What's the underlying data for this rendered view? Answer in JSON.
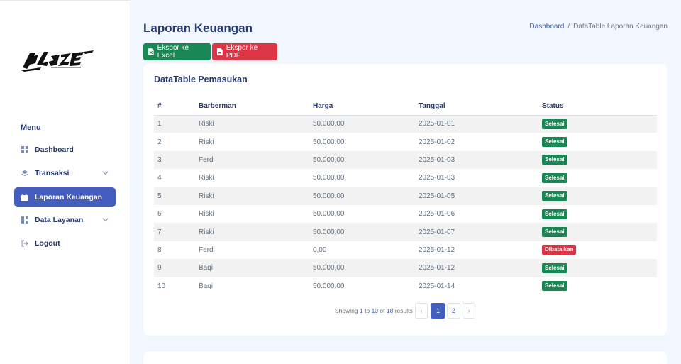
{
  "sidebar": {
    "menu_title": "Menu",
    "items": [
      {
        "label": "Dashboard",
        "icon": "grid-icon"
      },
      {
        "label": "Transaksi",
        "icon": "stack-icon"
      },
      {
        "label": "Laporan Keuangan",
        "icon": "wallet-icon"
      },
      {
        "label": "Data Layanan",
        "icon": "layout-icon"
      },
      {
        "label": "Logout",
        "icon": "logout-icon"
      }
    ]
  },
  "header": {
    "title": "Laporan Keuangan",
    "breadcrumb": [
      "Dashboard",
      "/",
      "DataTable Laporan Keuangan"
    ]
  },
  "actions": {
    "excel_label": "Ekspor ke Excel",
    "pdf_label": "Ekspor ke PDF"
  },
  "card": {
    "title": "DataTable Pemasukan",
    "columns": [
      "#",
      "Barberman",
      "Harga",
      "Tanggal",
      "Status"
    ],
    "rows": [
      {
        "no": "1",
        "barberman": "Riski",
        "harga": "50.000,00",
        "tanggal": "2025-01-01",
        "status": "Selesai"
      },
      {
        "no": "2",
        "barberman": "Riski",
        "harga": "50.000,00",
        "tanggal": "2025-01-02",
        "status": "Selesai"
      },
      {
        "no": "3",
        "barberman": "Ferdi",
        "harga": "50.000,00",
        "tanggal": "2025-01-03",
        "status": "Selesai"
      },
      {
        "no": "4",
        "barberman": "Riski",
        "harga": "50.000,00",
        "tanggal": "2025-01-03",
        "status": "Selesai"
      },
      {
        "no": "5",
        "barberman": "Riski",
        "harga": "50.000,00",
        "tanggal": "2025-01-05",
        "status": "Selesai"
      },
      {
        "no": "6",
        "barberman": "Riski",
        "harga": "50.000,00",
        "tanggal": "2025-01-06",
        "status": "Selesai"
      },
      {
        "no": "7",
        "barberman": "Riski",
        "harga": "50.000,00",
        "tanggal": "2025-01-07",
        "status": "Selesai"
      },
      {
        "no": "8",
        "barberman": "Ferdi",
        "harga": "0,00",
        "tanggal": "2025-01-12",
        "status": "Dibatalkan"
      },
      {
        "no": "9",
        "barberman": "Baqi",
        "harga": "50.000,00",
        "tanggal": "2025-01-12",
        "status": "Selesai"
      },
      {
        "no": "10",
        "barberman": "Baqi",
        "harga": "50.000,00",
        "tanggal": "2025-01-14",
        "status": "Selesai"
      }
    ],
    "pagination": {
      "info_prefix": "Showing",
      "from": "1",
      "to_word": "to",
      "to": "10",
      "of_word": "of",
      "total": "18",
      "suffix": "results",
      "prev": "‹",
      "next": "›",
      "pages": [
        "1",
        "2"
      ],
      "current": "1"
    }
  },
  "colors": {
    "primary": "#435ebe",
    "success": "#198754",
    "danger": "#dc3545",
    "background": "#f2f7ff"
  }
}
